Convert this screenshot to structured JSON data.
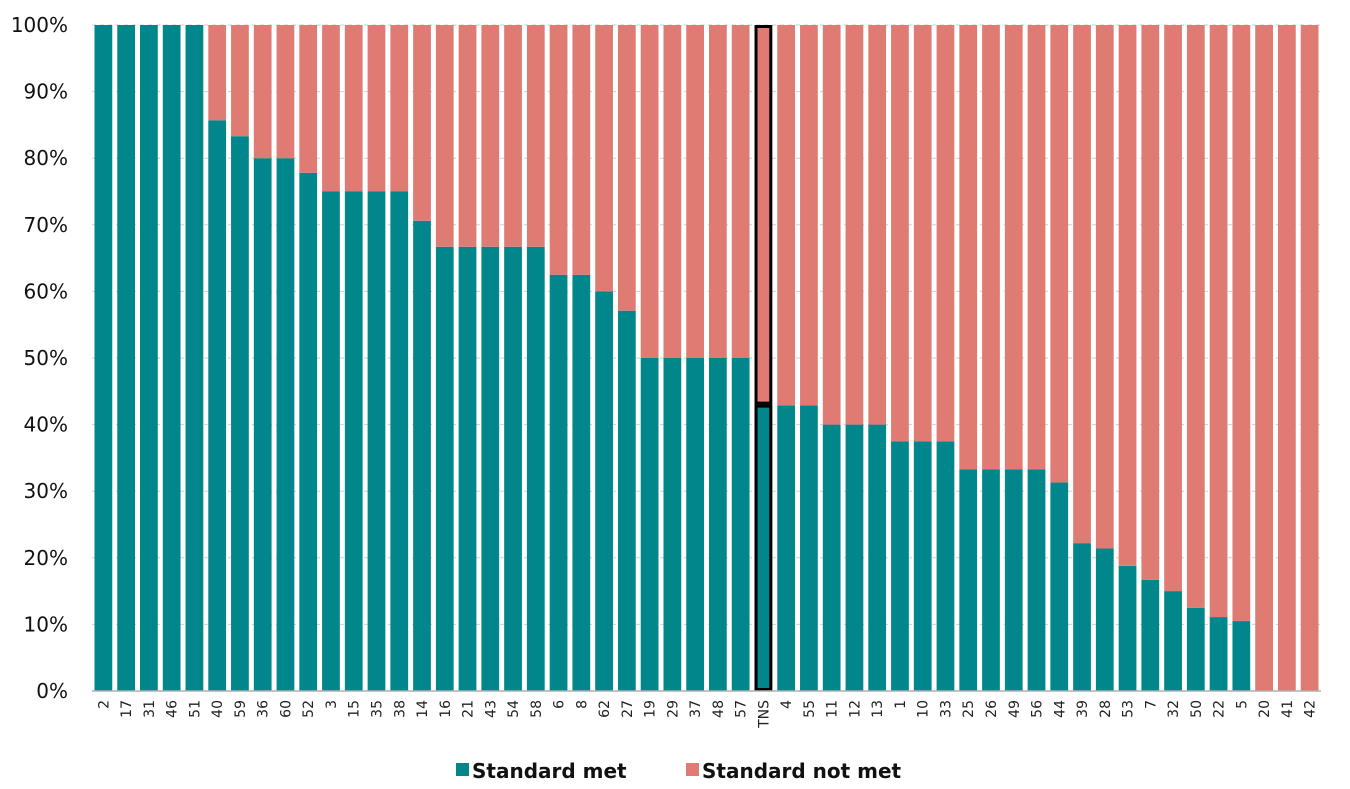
{
  "chart_data": {
    "type": "bar",
    "stacked": true,
    "title": "",
    "xlabel": "",
    "ylabel": "",
    "ylim": [
      0,
      100
    ],
    "y_tick_labels": [
      "0%",
      "10%",
      "20%",
      "30%",
      "40%",
      "50%",
      "60%",
      "70%",
      "80%",
      "90%",
      "100%"
    ],
    "y_tick_values": [
      0,
      10,
      20,
      30,
      40,
      50,
      60,
      70,
      80,
      90,
      100
    ],
    "grid": true,
    "legend_position": "bottom",
    "categories": [
      "2",
      "17",
      "31",
      "46",
      "51",
      "40",
      "59",
      "36",
      "60",
      "52",
      "3",
      "15",
      "35",
      "38",
      "14",
      "16",
      "21",
      "43",
      "54",
      "58",
      "6",
      "8",
      "62",
      "27",
      "19",
      "29",
      "37",
      "48",
      "57",
      "TNS",
      "4",
      "55",
      "11",
      "12",
      "13",
      "1",
      "10",
      "33",
      "25",
      "26",
      "49",
      "56",
      "44",
      "39",
      "28",
      "53",
      "7",
      "32",
      "50",
      "22",
      "5",
      "20",
      "41",
      "42"
    ],
    "highlighted_category": "TNS",
    "series": [
      {
        "name": "Standard met",
        "color": "#00868B",
        "values": [
          100,
          100,
          100,
          100,
          100,
          85.7,
          83.3,
          80,
          80,
          77.8,
          75,
          75,
          75,
          75,
          70.6,
          66.7,
          66.7,
          66.7,
          66.7,
          66.7,
          62.5,
          62.5,
          60,
          57.1,
          50,
          50,
          50,
          50,
          50,
          43,
          42.9,
          42.9,
          40,
          40,
          40,
          37.5,
          37.5,
          37.5,
          33.3,
          33.3,
          33.3,
          33.3,
          31.3,
          22.2,
          21.4,
          18.8,
          16.7,
          15,
          12.5,
          11.1,
          10.5,
          0,
          0,
          0
        ]
      },
      {
        "name": "Standard not met",
        "color": "#E07B73",
        "values": [
          0,
          0,
          0,
          0,
          0,
          14.3,
          16.7,
          20,
          20,
          22.2,
          25,
          25,
          25,
          25,
          29.4,
          33.3,
          33.3,
          33.3,
          33.3,
          33.3,
          37.5,
          37.5,
          40,
          42.9,
          50,
          50,
          50,
          50,
          50,
          57,
          57.1,
          57.1,
          60,
          60,
          60,
          62.5,
          62.5,
          62.5,
          66.7,
          66.7,
          66.7,
          66.7,
          68.7,
          77.8,
          78.6,
          81.2,
          83.3,
          85,
          87.5,
          88.9,
          89.5,
          100,
          100,
          100
        ]
      }
    ]
  }
}
